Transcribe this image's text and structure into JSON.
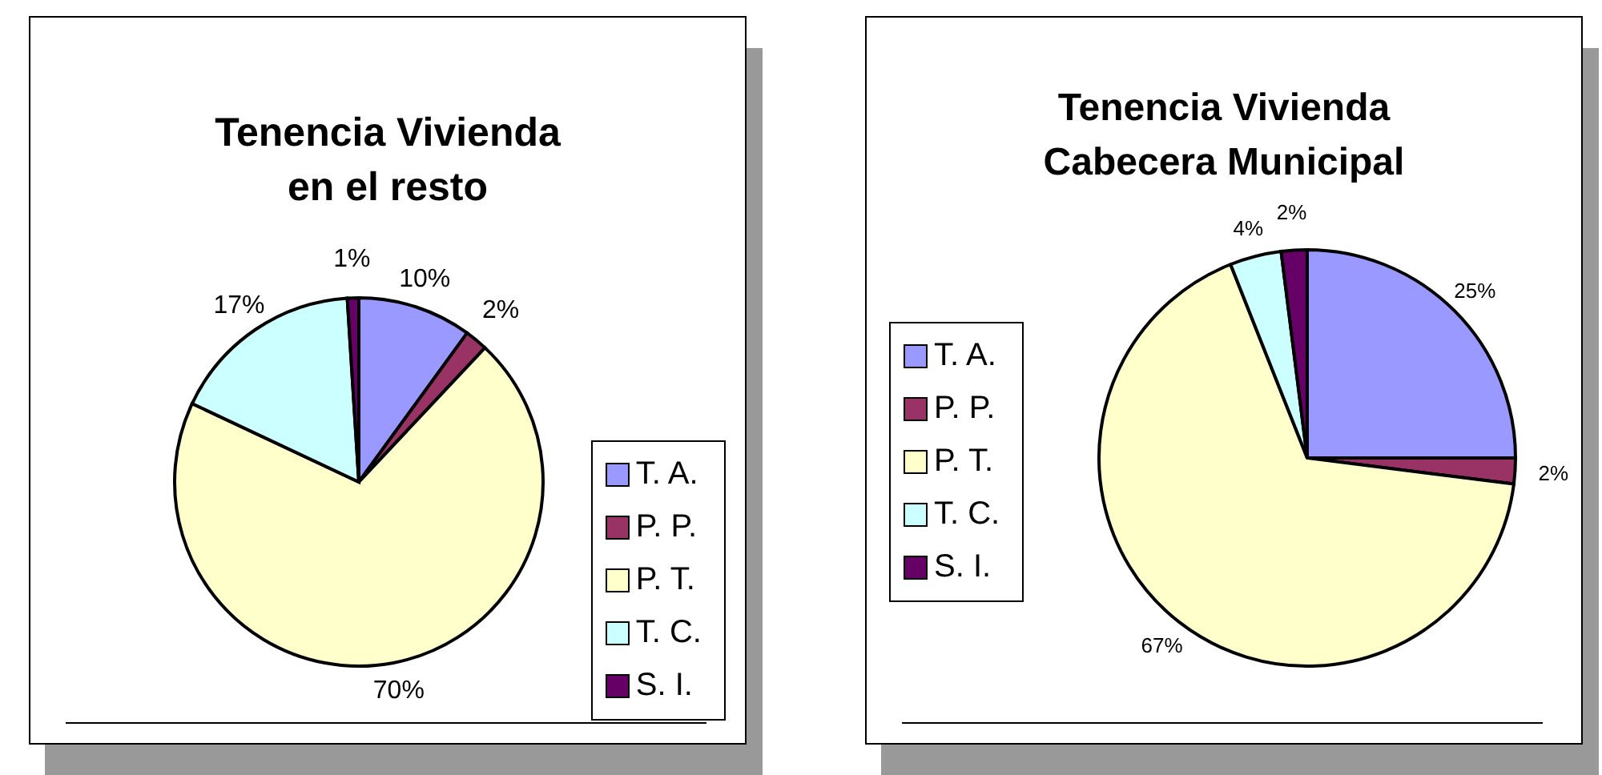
{
  "chart_data": [
    {
      "type": "pie",
      "title": "Tenencia Vivienda en el resto",
      "categories": [
        "T. A.",
        "P. P.",
        "P. T.",
        "T. C.",
        "S. I."
      ],
      "values": [
        10,
        2,
        70,
        17,
        1
      ],
      "colors": [
        "#9999ff",
        "#993366",
        "#ffffcc",
        "#ccffff",
        "#660066"
      ],
      "value_labels": [
        "10%",
        "2%",
        "70%",
        "17%",
        "1%"
      ],
      "legend": "bottom right"
    },
    {
      "type": "pie",
      "title": "Tenencia Vivienda Cabecera Municipal",
      "categories": [
        "T. A.",
        "P. P.",
        "P. T.",
        "T. C.",
        "S. I."
      ],
      "values": [
        25,
        2,
        67,
        4,
        2
      ],
      "colors": [
        "#9999ff",
        "#993366",
        "#ffffcc",
        "#ccffff",
        "#660066"
      ],
      "value_labels": [
        "25%",
        "2%",
        "67%",
        "4%",
        "2%"
      ],
      "legend": "left"
    }
  ]
}
